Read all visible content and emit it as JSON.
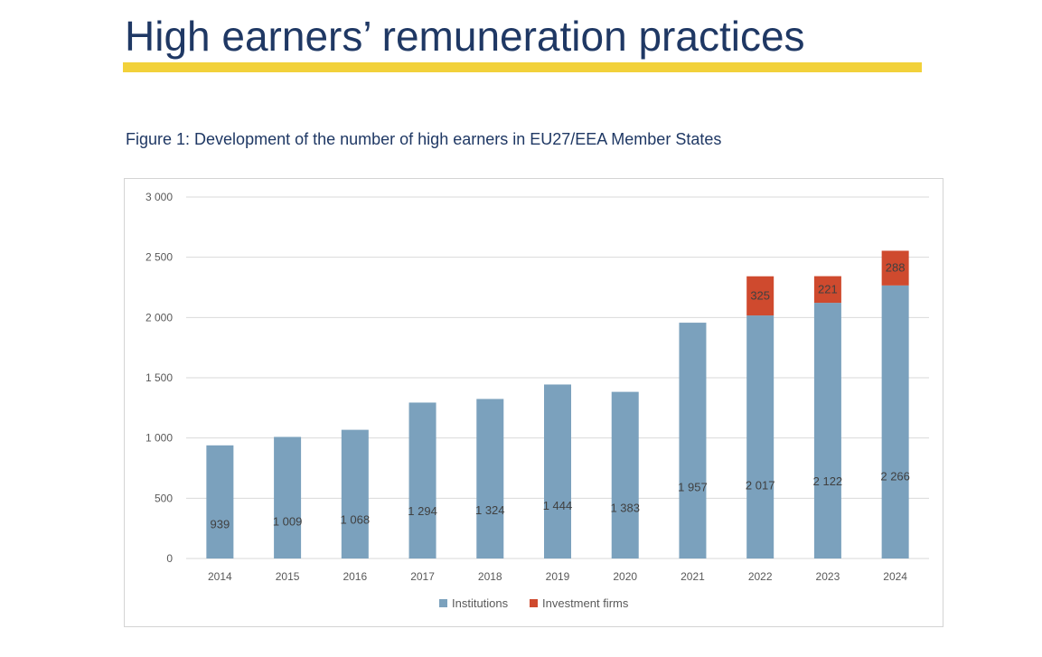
{
  "page": {
    "title": "High earners’ remuneration practices",
    "figure_caption": "Figure 1: Development of the number of high earners in EU27/EEA Member States"
  },
  "colors": {
    "title": "#1f3864",
    "rule": "#f2d13a",
    "institutions": "#7ba1bd",
    "investment_firms": "#cf4a2e",
    "gridline": "#d9d9d9",
    "axis_text": "#595959"
  },
  "chart_data": {
    "type": "bar",
    "stacked": true,
    "title": "",
    "xlabel": "",
    "ylabel": "",
    "ylim": [
      0,
      3000
    ],
    "ytick_values": [
      0,
      500,
      1000,
      1500,
      2000,
      2500,
      3000
    ],
    "ytick_labels": [
      "0",
      "500",
      "1 000",
      "1 500",
      "2 000",
      "2 500",
      "3 000"
    ],
    "grid": true,
    "legend_position": "bottom-center",
    "categories": [
      "2014",
      "2015",
      "2016",
      "2017",
      "2018",
      "2019",
      "2020",
      "2021",
      "2022",
      "2023",
      "2024"
    ],
    "series": [
      {
        "name": "Institutions",
        "values": [
          939,
          1009,
          1068,
          1294,
          1324,
          1444,
          1383,
          1957,
          2017,
          2122,
          2266
        ],
        "labels": [
          "939",
          "1 009",
          "1 068",
          "1 294",
          "1 324",
          "1 444",
          "1 383",
          "1 957",
          "2 017",
          "2 122",
          "2 266"
        ]
      },
      {
        "name": "Investment firms",
        "values": [
          null,
          null,
          null,
          null,
          null,
          null,
          null,
          null,
          325,
          221,
          288
        ],
        "labels": [
          "",
          "",
          "",
          "",
          "",
          "",
          "",
          "",
          "325",
          "221",
          "288"
        ]
      }
    ]
  }
}
